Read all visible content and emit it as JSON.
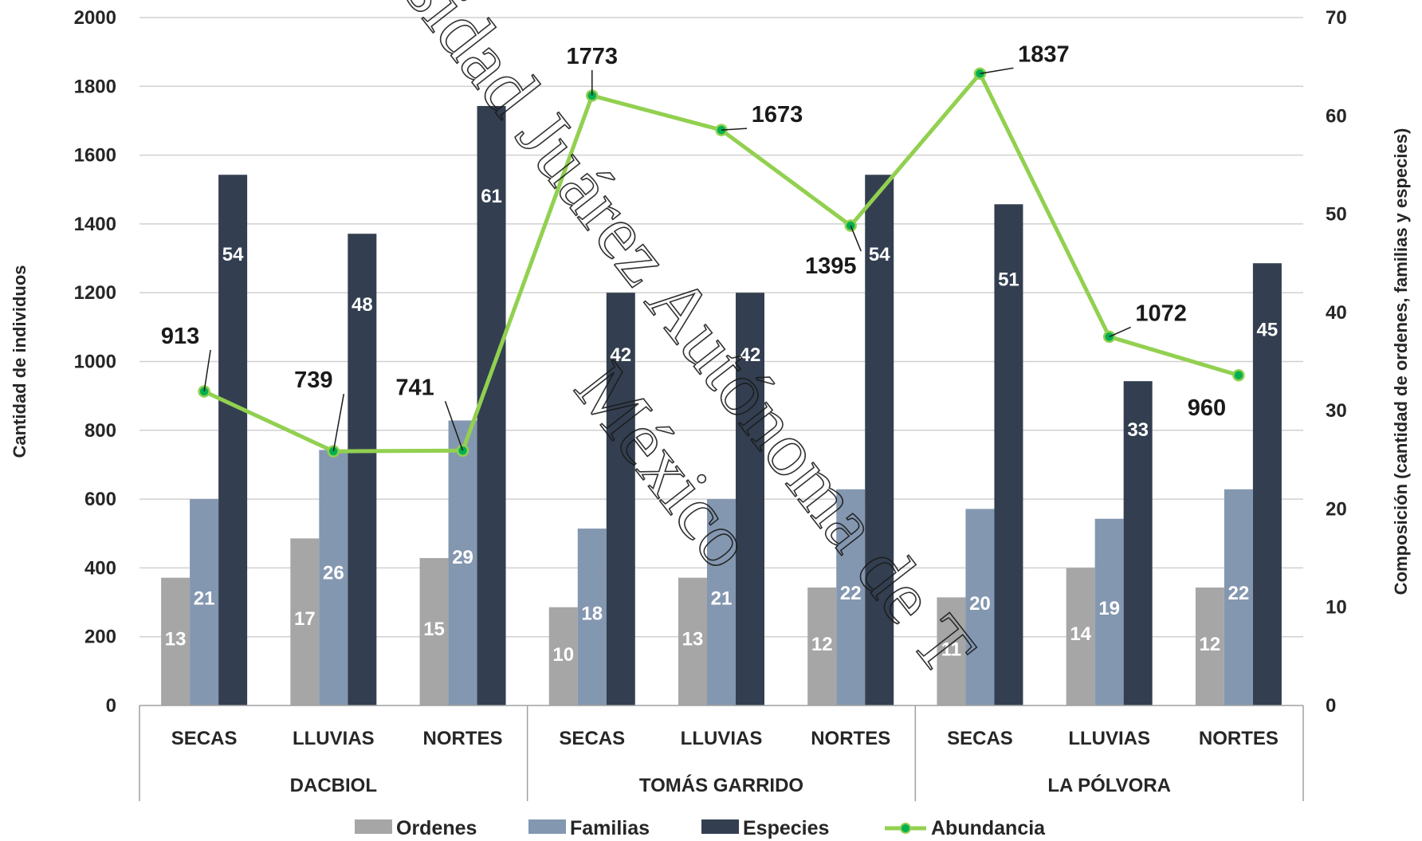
{
  "chart_data": {
    "type": "bar",
    "title": "",
    "ylabel": "Cantidad de individuos",
    "y2label": "Composición (cantidad de ordenes, familias y especies)",
    "ylim": [
      0,
      2000
    ],
    "y_ticks": [
      0,
      200,
      400,
      600,
      800,
      1000,
      1200,
      1400,
      1600,
      1800,
      2000
    ],
    "y2lim": [
      0,
      70
    ],
    "y2_ticks": [
      0,
      10,
      20,
      30,
      40,
      50,
      60,
      70
    ],
    "grid": true,
    "legend_position": "bottom",
    "groups": [
      {
        "name": "DACBIOL",
        "categories": [
          "SECAS",
          "LLUVIAS",
          "NORTES"
        ]
      },
      {
        "name": "TOMÁS GARRIDO",
        "categories": [
          "SECAS",
          "LLUVIAS",
          "NORTES"
        ]
      },
      {
        "name": "LA PÓLVORA",
        "categories": [
          "SECAS",
          "LLUVIAS",
          "NORTES"
        ]
      }
    ],
    "series": [
      {
        "name": "Ordenes",
        "type": "bar",
        "axis": "right",
        "color": "#a6a6a6",
        "values": [
          13,
          17,
          15,
          10,
          13,
          12,
          11,
          14,
          12
        ]
      },
      {
        "name": "Familias",
        "type": "bar",
        "axis": "right",
        "color": "#8497b0",
        "values": [
          21,
          26,
          29,
          18,
          21,
          22,
          20,
          19,
          22
        ]
      },
      {
        "name": "Especies",
        "type": "bar",
        "axis": "right",
        "color": "#333f50",
        "values": [
          54,
          48,
          61,
          42,
          42,
          54,
          51,
          33,
          45
        ]
      },
      {
        "name": "Abundancia",
        "type": "line",
        "axis": "left",
        "color": "#92d050",
        "marker_color": "#00b050",
        "values": [
          913,
          739,
          741,
          1773,
          1673,
          1395,
          1837,
          1072,
          960
        ]
      }
    ]
  },
  "watermark": {
    "line1": "sidad Juárez Autónoma de T",
    "line2": "México"
  }
}
